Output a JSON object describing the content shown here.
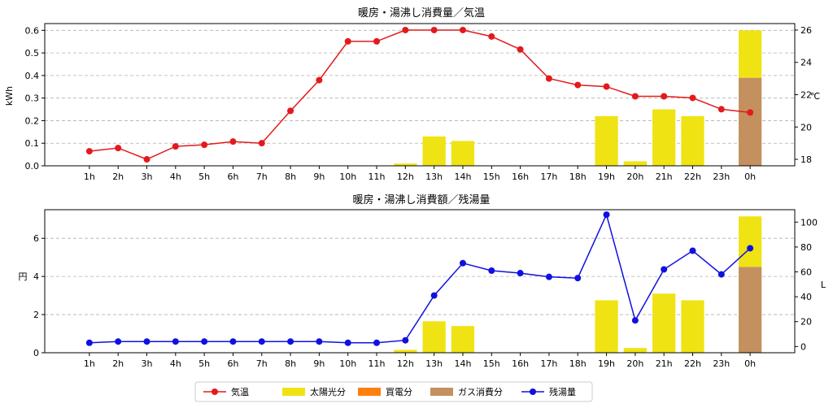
{
  "chart_data": [
    {
      "type": "bar",
      "title": "暖房・湯沸し消費量／気温",
      "categories": [
        "1h",
        "2h",
        "3h",
        "4h",
        "5h",
        "6h",
        "7h",
        "8h",
        "9h",
        "10h",
        "11h",
        "12h",
        "13h",
        "14h",
        "15h",
        "16h",
        "17h",
        "18h",
        "19h",
        "20h",
        "21h",
        "22h",
        "23h",
        "0h"
      ],
      "ylabel": "kWh",
      "ylim": [
        0,
        0.63
      ],
      "yticks": [
        "0.0",
        "0.1",
        "0.2",
        "0.3",
        "0.4",
        "0.5",
        "0.6"
      ],
      "y2label": "℃",
      "y2lim": [
        17.6,
        26.4
      ],
      "y2ticks": [
        "18",
        "20",
        "22",
        "24",
        "26"
      ],
      "grid": true,
      "series": [
        {
          "name": "太陽光分",
          "kind": "bar",
          "color": "#f0e314",
          "values": [
            0,
            0,
            0,
            0,
            0,
            0,
            0,
            0,
            0,
            0,
            0,
            0.01,
            0.13,
            0.11,
            0,
            0,
            0,
            0,
            0.22,
            0.02,
            0.25,
            0.22,
            0,
            0.21
          ]
        },
        {
          "name": "買電分",
          "kind": "bar",
          "color": "#ff7f0e",
          "values": [
            0,
            0,
            0,
            0,
            0,
            0,
            0,
            0,
            0,
            0,
            0,
            0,
            0,
            0,
            0,
            0,
            0,
            0,
            0,
            0,
            0,
            0,
            0,
            0
          ]
        },
        {
          "name": "ガス消費分",
          "kind": "bar",
          "color": "#c49060",
          "values": [
            0,
            0,
            0,
            0,
            0,
            0,
            0,
            0,
            0,
            0,
            0,
            0,
            0,
            0,
            0,
            0,
            0,
            0,
            0,
            0,
            0,
            0,
            0,
            0.39
          ]
        },
        {
          "name": "気温",
          "kind": "line",
          "axis": "right",
          "color": "#e31a1c",
          "values": [
            18.5,
            18.7,
            18.0,
            18.8,
            18.9,
            19.1,
            19.0,
            21.0,
            22.9,
            25.3,
            25.3,
            26.0,
            26.0,
            26.0,
            25.6,
            24.8,
            23.0,
            22.6,
            22.5,
            21.9,
            21.9,
            21.8,
            21.1,
            20.9
          ]
        }
      ]
    },
    {
      "type": "bar",
      "title": "暖房・湯沸し消費額／残湯量",
      "categories": [
        "1h",
        "2h",
        "3h",
        "4h",
        "5h",
        "6h",
        "7h",
        "8h",
        "9h",
        "10h",
        "11h",
        "12h",
        "13h",
        "14h",
        "15h",
        "16h",
        "17h",
        "18h",
        "19h",
        "20h",
        "21h",
        "22h",
        "23h",
        "0h"
      ],
      "ylabel": "円",
      "ylim": [
        0,
        7.5
      ],
      "yticks": [
        "0",
        "2",
        "4",
        "6"
      ],
      "y2label": "L",
      "y2lim": [
        -5,
        110
      ],
      "y2ticks": [
        "0",
        "20",
        "40",
        "60",
        "80",
        "100"
      ],
      "grid": true,
      "series": [
        {
          "name": "太陽光分",
          "kind": "bar",
          "color": "#f0e314",
          "values": [
            0,
            0,
            0,
            0,
            0,
            0,
            0,
            0,
            0,
            0,
            0,
            0.15,
            1.65,
            1.4,
            0,
            0,
            0,
            0,
            2.75,
            0.25,
            3.1,
            2.75,
            0,
            2.65
          ]
        },
        {
          "name": "買電分",
          "kind": "bar",
          "color": "#ff7f0e",
          "values": [
            0,
            0,
            0,
            0,
            0,
            0,
            0,
            0,
            0,
            0,
            0,
            0,
            0,
            0,
            0,
            0,
            0,
            0,
            0,
            0,
            0,
            0,
            0,
            0
          ]
        },
        {
          "name": "ガス消費分",
          "kind": "bar",
          "color": "#c49060",
          "values": [
            0,
            0,
            0,
            0,
            0,
            0,
            0,
            0,
            0,
            0,
            0,
            0,
            0,
            0,
            0,
            0,
            0,
            0,
            0,
            0,
            0,
            0,
            0,
            4.5
          ]
        },
        {
          "name": "残湯量",
          "kind": "line",
          "axis": "right",
          "color": "#1010e0",
          "values": [
            3,
            4,
            4,
            4,
            4,
            4,
            4,
            4,
            4,
            3,
            3,
            5,
            41,
            67,
            61,
            59,
            56,
            55,
            106,
            21,
            62,
            77,
            58,
            79
          ]
        }
      ]
    }
  ],
  "legend": {
    "placement": "bottom-center",
    "items": [
      {
        "label": "気温",
        "kind": "line",
        "color": "#e31a1c"
      },
      {
        "label": "太陽光分",
        "kind": "patch",
        "color": "#f0e314"
      },
      {
        "label": "買電分",
        "kind": "patch",
        "color": "#ff7f0e"
      },
      {
        "label": "ガス消費分",
        "kind": "patch",
        "color": "#c49060"
      },
      {
        "label": "残湯量",
        "kind": "line",
        "color": "#1010e0"
      }
    ]
  }
}
